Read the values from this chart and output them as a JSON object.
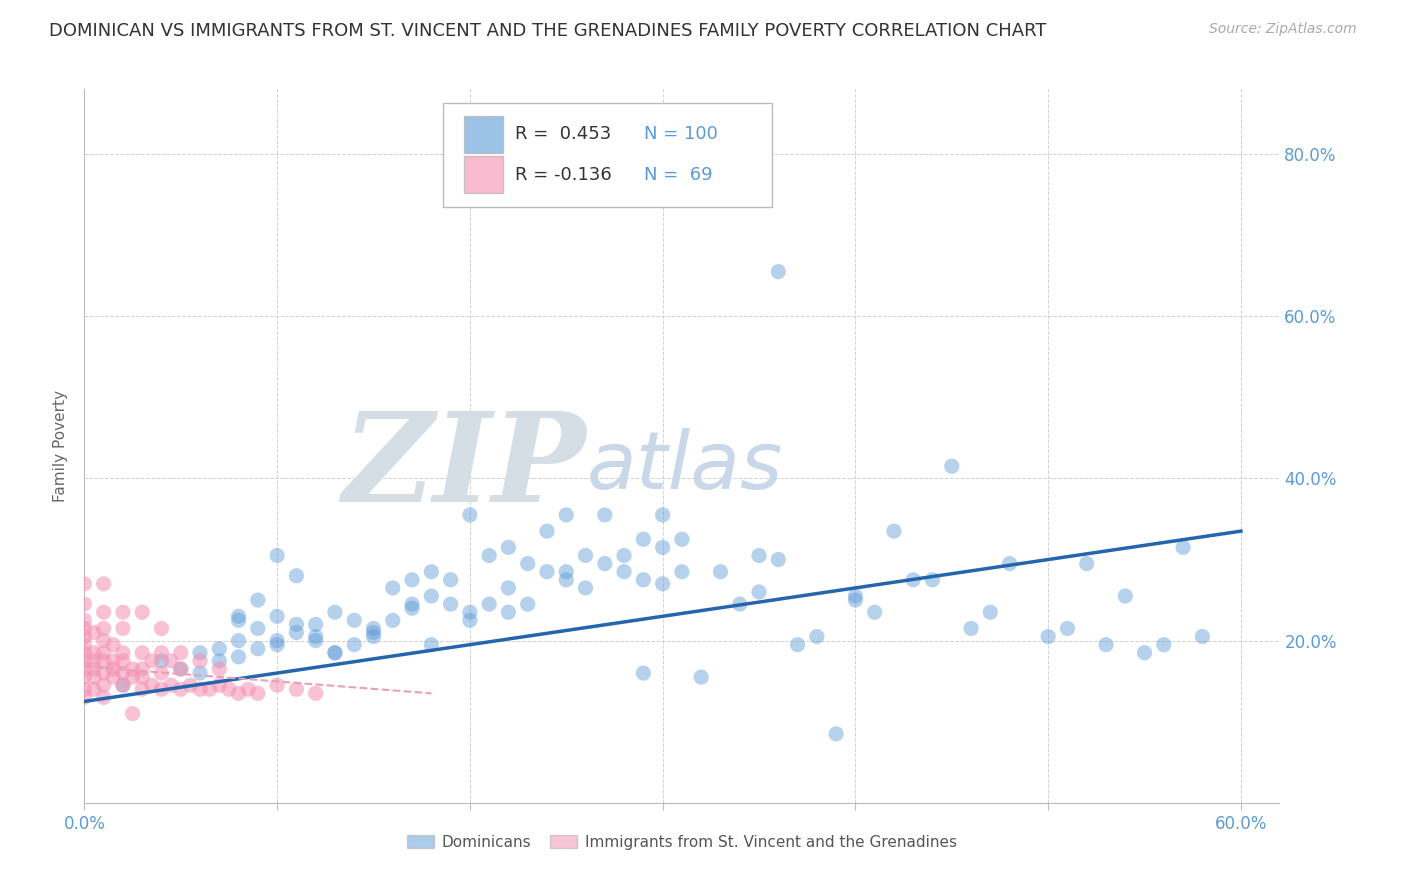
{
  "title": "DOMINICAN VS IMMIGRANTS FROM ST. VINCENT AND THE GRENADINES FAMILY POVERTY CORRELATION CHART",
  "source": "Source: ZipAtlas.com",
  "ylabel": "Family Poverty",
  "xlim": [
    0.0,
    0.62
  ],
  "ylim": [
    0.0,
    0.88
  ],
  "xticks": [
    0.0,
    0.1,
    0.2,
    0.3,
    0.4,
    0.5,
    0.6
  ],
  "yticks": [
    0.0,
    0.2,
    0.4,
    0.6,
    0.8
  ],
  "ytick_labels_right": [
    "",
    "20.0%",
    "40.0%",
    "60.0%",
    "80.0%"
  ],
  "grid_color": "#cccccc",
  "background_color": "#ffffff",
  "blue_color": "#5b9bd5",
  "pink_color": "#f48fb1",
  "blue_line_color": "#2565ae",
  "pink_line_color": "#e8a0b8",
  "title_fontsize": 13,
  "axis_label_fontsize": 11,
  "tick_fontsize": 12,
  "legend_label1": "Dominicans",
  "legend_label2": "Immigrants from St. Vincent and the Grenadines",
  "blue_scatter_x": [
    0.02,
    0.04,
    0.05,
    0.06,
    0.06,
    0.07,
    0.07,
    0.08,
    0.08,
    0.09,
    0.09,
    0.1,
    0.1,
    0.1,
    0.11,
    0.11,
    0.12,
    0.12,
    0.13,
    0.13,
    0.14,
    0.14,
    0.15,
    0.15,
    0.16,
    0.16,
    0.17,
    0.17,
    0.18,
    0.18,
    0.18,
    0.19,
    0.19,
    0.2,
    0.2,
    0.21,
    0.21,
    0.22,
    0.22,
    0.23,
    0.23,
    0.24,
    0.24,
    0.25,
    0.25,
    0.26,
    0.26,
    0.27,
    0.27,
    0.28,
    0.28,
    0.29,
    0.29,
    0.3,
    0.3,
    0.31,
    0.31,
    0.32,
    0.33,
    0.34,
    0.35,
    0.36,
    0.37,
    0.38,
    0.39,
    0.4,
    0.41,
    0.42,
    0.43,
    0.44,
    0.45,
    0.46,
    0.47,
    0.48,
    0.5,
    0.51,
    0.52,
    0.53,
    0.54,
    0.55,
    0.56,
    0.57,
    0.58,
    0.36,
    0.29,
    0.22,
    0.17,
    0.12,
    0.08,
    0.08,
    0.09,
    0.1,
    0.11,
    0.13,
    0.15,
    0.2,
    0.25,
    0.3,
    0.35,
    0.4
  ],
  "blue_scatter_y": [
    0.145,
    0.175,
    0.165,
    0.16,
    0.185,
    0.19,
    0.175,
    0.2,
    0.23,
    0.19,
    0.25,
    0.2,
    0.23,
    0.305,
    0.21,
    0.28,
    0.22,
    0.205,
    0.235,
    0.185,
    0.195,
    0.225,
    0.215,
    0.205,
    0.225,
    0.265,
    0.245,
    0.275,
    0.255,
    0.285,
    0.195,
    0.245,
    0.275,
    0.355,
    0.225,
    0.305,
    0.245,
    0.315,
    0.265,
    0.295,
    0.245,
    0.285,
    0.335,
    0.275,
    0.355,
    0.305,
    0.265,
    0.295,
    0.355,
    0.305,
    0.285,
    0.325,
    0.275,
    0.315,
    0.355,
    0.285,
    0.325,
    0.155,
    0.285,
    0.245,
    0.305,
    0.655,
    0.195,
    0.205,
    0.085,
    0.255,
    0.235,
    0.335,
    0.275,
    0.275,
    0.415,
    0.215,
    0.235,
    0.295,
    0.205,
    0.215,
    0.295,
    0.195,
    0.255,
    0.185,
    0.195,
    0.315,
    0.205,
    0.3,
    0.16,
    0.235,
    0.24,
    0.2,
    0.18,
    0.225,
    0.215,
    0.195,
    0.22,
    0.185,
    0.21,
    0.235,
    0.285,
    0.27,
    0.26,
    0.25
  ],
  "pink_scatter_x": [
    0.0,
    0.0,
    0.0,
    0.0,
    0.0,
    0.0,
    0.0,
    0.0,
    0.0,
    0.0,
    0.0,
    0.0,
    0.005,
    0.005,
    0.005,
    0.005,
    0.005,
    0.005,
    0.01,
    0.01,
    0.01,
    0.01,
    0.01,
    0.01,
    0.01,
    0.01,
    0.01,
    0.015,
    0.015,
    0.015,
    0.015,
    0.02,
    0.02,
    0.02,
    0.02,
    0.02,
    0.02,
    0.025,
    0.025,
    0.025,
    0.03,
    0.03,
    0.03,
    0.03,
    0.03,
    0.035,
    0.035,
    0.04,
    0.04,
    0.04,
    0.04,
    0.045,
    0.045,
    0.05,
    0.05,
    0.05,
    0.055,
    0.06,
    0.06,
    0.065,
    0.07,
    0.07,
    0.075,
    0.08,
    0.085,
    0.09,
    0.1,
    0.11,
    0.12
  ],
  "pink_scatter_y": [
    0.13,
    0.14,
    0.155,
    0.165,
    0.175,
    0.185,
    0.195,
    0.205,
    0.215,
    0.225,
    0.245,
    0.27,
    0.14,
    0.155,
    0.165,
    0.175,
    0.185,
    0.21,
    0.145,
    0.16,
    0.175,
    0.185,
    0.2,
    0.215,
    0.235,
    0.27,
    0.13,
    0.155,
    0.165,
    0.175,
    0.195,
    0.145,
    0.16,
    0.175,
    0.185,
    0.215,
    0.235,
    0.155,
    0.165,
    0.11,
    0.14,
    0.155,
    0.165,
    0.185,
    0.235,
    0.145,
    0.175,
    0.14,
    0.16,
    0.185,
    0.215,
    0.145,
    0.175,
    0.14,
    0.165,
    0.185,
    0.145,
    0.14,
    0.175,
    0.14,
    0.145,
    0.165,
    0.14,
    0.135,
    0.14,
    0.135,
    0.145,
    0.14,
    0.135
  ],
  "blue_trend_x": [
    0.0,
    0.6
  ],
  "blue_trend_y_start": 0.125,
  "blue_trend_y_end": 0.335,
  "pink_trend_x": [
    0.0,
    0.18
  ],
  "pink_trend_y_start": 0.168,
  "pink_trend_y_end": 0.135,
  "watermark_zip": "ZIP",
  "watermark_atlas": "atlas",
  "watermark_color_zip": "#c8d8e8",
  "watermark_color_atlas": "#c8d8e8",
  "watermark_fontsize": 90
}
